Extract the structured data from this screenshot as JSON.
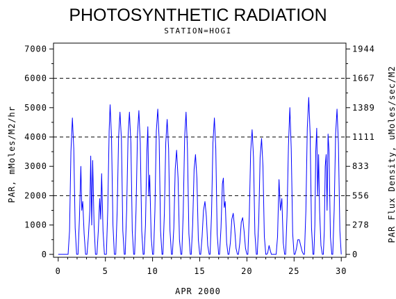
{
  "chart_data": {
    "type": "line",
    "title": "PHOTOSYNTHETIC RADIATION",
    "subtitle": "STATION=HOGI",
    "xlabel": "APR 2000",
    "ylabel": "PAR, mMoles/M2/hr",
    "y2label": "PAR Flux Density, uMoles/sec/M2",
    "xlim": [
      -0.5,
      30.5
    ],
    "ylim": [
      -100,
      7200
    ],
    "xticks": [
      0,
      5,
      10,
      15,
      20,
      25,
      30
    ],
    "yticks": [
      0,
      1000,
      2000,
      3000,
      4000,
      5000,
      6000,
      7000
    ],
    "y2ticks": [
      {
        "label": "0",
        "value": 0
      },
      {
        "label": "278",
        "value": 1000
      },
      {
        "label": "556",
        "value": 2000
      },
      {
        "label": "833",
        "value": 3000
      },
      {
        "label": "1111",
        "value": 4000
      },
      {
        "label": "1389",
        "value": 5000
      },
      {
        "label": "1667",
        "value": 6000
      },
      {
        "label": "1944",
        "value": 7000
      }
    ],
    "dashed_gridlines": [
      2000,
      4000,
      6000
    ],
    "line_color": "#0000ff",
    "series": [
      {
        "values": [
          [
            0,
            0
          ],
          [
            1.05,
            0
          ],
          [
            1.2,
            800
          ],
          [
            1.35,
            3500
          ],
          [
            1.5,
            4650
          ],
          [
            1.65,
            3600
          ],
          [
            1.8,
            900
          ],
          [
            1.95,
            0
          ],
          [
            2.1,
            0
          ],
          [
            2.25,
            1200
          ],
          [
            2.4,
            3000
          ],
          [
            2.5,
            1500
          ],
          [
            2.6,
            1800
          ],
          [
            2.75,
            700
          ],
          [
            2.9,
            0
          ],
          [
            3.05,
            0
          ],
          [
            3.2,
            600
          ],
          [
            3.35,
            1500
          ],
          [
            3.45,
            3350
          ],
          [
            3.55,
            1000
          ],
          [
            3.65,
            3200
          ],
          [
            3.8,
            1000
          ],
          [
            3.95,
            0
          ],
          [
            4.1,
            0
          ],
          [
            4.25,
            800
          ],
          [
            4.4,
            1900
          ],
          [
            4.5,
            1200
          ],
          [
            4.6,
            2750
          ],
          [
            4.75,
            800
          ],
          [
            4.9,
            0
          ],
          [
            5.1,
            0
          ],
          [
            5.25,
            1500
          ],
          [
            5.4,
            4200
          ],
          [
            5.5,
            5100
          ],
          [
            5.65,
            4000
          ],
          [
            5.8,
            1000
          ],
          [
            5.95,
            0
          ],
          [
            6.1,
            0
          ],
          [
            6.25,
            1500
          ],
          [
            6.4,
            4000
          ],
          [
            6.55,
            4850
          ],
          [
            6.7,
            3900
          ],
          [
            6.85,
            800
          ],
          [
            7.0,
            0
          ],
          [
            7.1,
            0
          ],
          [
            7.25,
            1500
          ],
          [
            7.4,
            4000
          ],
          [
            7.55,
            4850
          ],
          [
            7.7,
            3800
          ],
          [
            7.85,
            800
          ],
          [
            8.0,
            0
          ],
          [
            8.1,
            0
          ],
          [
            8.25,
            1500
          ],
          [
            8.4,
            4100
          ],
          [
            8.55,
            4900
          ],
          [
            8.7,
            3800
          ],
          [
            8.85,
            800
          ],
          [
            9.0,
            0
          ],
          [
            9.1,
            0
          ],
          [
            9.25,
            1000
          ],
          [
            9.4,
            3500
          ],
          [
            9.5,
            4350
          ],
          [
            9.6,
            2000
          ],
          [
            9.7,
            2700
          ],
          [
            9.85,
            600
          ],
          [
            10.0,
            0
          ],
          [
            10.1,
            0
          ],
          [
            10.25,
            1500
          ],
          [
            10.4,
            4200
          ],
          [
            10.55,
            4950
          ],
          [
            10.7,
            3900
          ],
          [
            10.85,
            800
          ],
          [
            11.0,
            0
          ],
          [
            11.1,
            0
          ],
          [
            11.25,
            1400
          ],
          [
            11.4,
            3800
          ],
          [
            11.55,
            4600
          ],
          [
            11.7,
            3600
          ],
          [
            11.85,
            800
          ],
          [
            12.0,
            0
          ],
          [
            12.1,
            0
          ],
          [
            12.25,
            900
          ],
          [
            12.4,
            2900
          ],
          [
            12.55,
            3550
          ],
          [
            12.7,
            2600
          ],
          [
            12.85,
            500
          ],
          [
            13.0,
            0
          ],
          [
            13.1,
            0
          ],
          [
            13.25,
            1400
          ],
          [
            13.4,
            4000
          ],
          [
            13.55,
            4850
          ],
          [
            13.7,
            3600
          ],
          [
            13.85,
            700
          ],
          [
            14.0,
            0
          ],
          [
            14.1,
            0
          ],
          [
            14.25,
            1000
          ],
          [
            14.4,
            2900
          ],
          [
            14.55,
            3400
          ],
          [
            14.7,
            2600
          ],
          [
            14.85,
            500
          ],
          [
            15.0,
            0
          ],
          [
            15.1,
            0
          ],
          [
            15.25,
            600
          ],
          [
            15.4,
            1500
          ],
          [
            15.55,
            1800
          ],
          [
            15.7,
            1300
          ],
          [
            15.85,
            300
          ],
          [
            16.0,
            0
          ],
          [
            16.1,
            0
          ],
          [
            16.25,
            1400
          ],
          [
            16.4,
            3800
          ],
          [
            16.55,
            4650
          ],
          [
            16.7,
            3600
          ],
          [
            16.85,
            700
          ],
          [
            17.0,
            0
          ],
          [
            17.1,
            0
          ],
          [
            17.25,
            900
          ],
          [
            17.4,
            2400
          ],
          [
            17.5,
            2600
          ],
          [
            17.6,
            1600
          ],
          [
            17.7,
            1800
          ],
          [
            17.85,
            400
          ],
          [
            18.0,
            0
          ],
          [
            18.1,
            0
          ],
          [
            18.25,
            400
          ],
          [
            18.4,
            1200
          ],
          [
            18.55,
            1400
          ],
          [
            18.7,
            900
          ],
          [
            18.85,
            200
          ],
          [
            19.0,
            0
          ],
          [
            19.1,
            0
          ],
          [
            19.25,
            400
          ],
          [
            19.4,
            1100
          ],
          [
            19.55,
            1250
          ],
          [
            19.7,
            800
          ],
          [
            19.85,
            200
          ],
          [
            20.0,
            0
          ],
          [
            20.1,
            0
          ],
          [
            20.25,
            1300
          ],
          [
            20.4,
            3500
          ],
          [
            20.55,
            4250
          ],
          [
            20.7,
            3300
          ],
          [
            20.85,
            700
          ],
          [
            21.0,
            0
          ],
          [
            21.1,
            0
          ],
          [
            21.25,
            1100
          ],
          [
            21.4,
            3300
          ],
          [
            21.55,
            3950
          ],
          [
            21.7,
            3000
          ],
          [
            21.85,
            600
          ],
          [
            22.0,
            0
          ],
          [
            22.1,
            0
          ],
          [
            22.2,
            50
          ],
          [
            22.35,
            300
          ],
          [
            22.5,
            100
          ],
          [
            22.6,
            0
          ],
          [
            23.1,
            0
          ],
          [
            23.25,
            600
          ],
          [
            23.4,
            2550
          ],
          [
            23.55,
            1500
          ],
          [
            23.7,
            1900
          ],
          [
            23.85,
            400
          ],
          [
            24.0,
            0
          ],
          [
            24.1,
            0
          ],
          [
            24.25,
            1300
          ],
          [
            24.4,
            3700
          ],
          [
            24.55,
            5000
          ],
          [
            24.7,
            3600
          ],
          [
            24.85,
            700
          ],
          [
            25.0,
            0
          ],
          [
            25.1,
            0
          ],
          [
            25.25,
            200
          ],
          [
            25.4,
            500
          ],
          [
            25.55,
            500
          ],
          [
            25.7,
            300
          ],
          [
            25.85,
            100
          ],
          [
            26.0,
            0
          ],
          [
            26.1,
            0
          ],
          [
            26.25,
            1500
          ],
          [
            26.4,
            4300
          ],
          [
            26.55,
            5350
          ],
          [
            26.7,
            4100
          ],
          [
            26.85,
            900
          ],
          [
            27.0,
            0
          ],
          [
            27.1,
            0
          ],
          [
            27.2,
            1000
          ],
          [
            27.3,
            3500
          ],
          [
            27.4,
            4300
          ],
          [
            27.5,
            2000
          ],
          [
            27.6,
            3400
          ],
          [
            27.7,
            1500
          ],
          [
            27.85,
            300
          ],
          [
            28.0,
            0
          ],
          [
            28.1,
            0
          ],
          [
            28.2,
            800
          ],
          [
            28.3,
            3000
          ],
          [
            28.4,
            3400
          ],
          [
            28.5,
            1500
          ],
          [
            28.6,
            4100
          ],
          [
            28.7,
            3500
          ],
          [
            28.85,
            600
          ],
          [
            29.0,
            0
          ],
          [
            29.1,
            0
          ],
          [
            29.25,
            1500
          ],
          [
            29.4,
            4100
          ],
          [
            29.55,
            4950
          ],
          [
            29.7,
            3800
          ],
          [
            29.85,
            800
          ],
          [
            30.0,
            0
          ]
        ]
      }
    ]
  }
}
